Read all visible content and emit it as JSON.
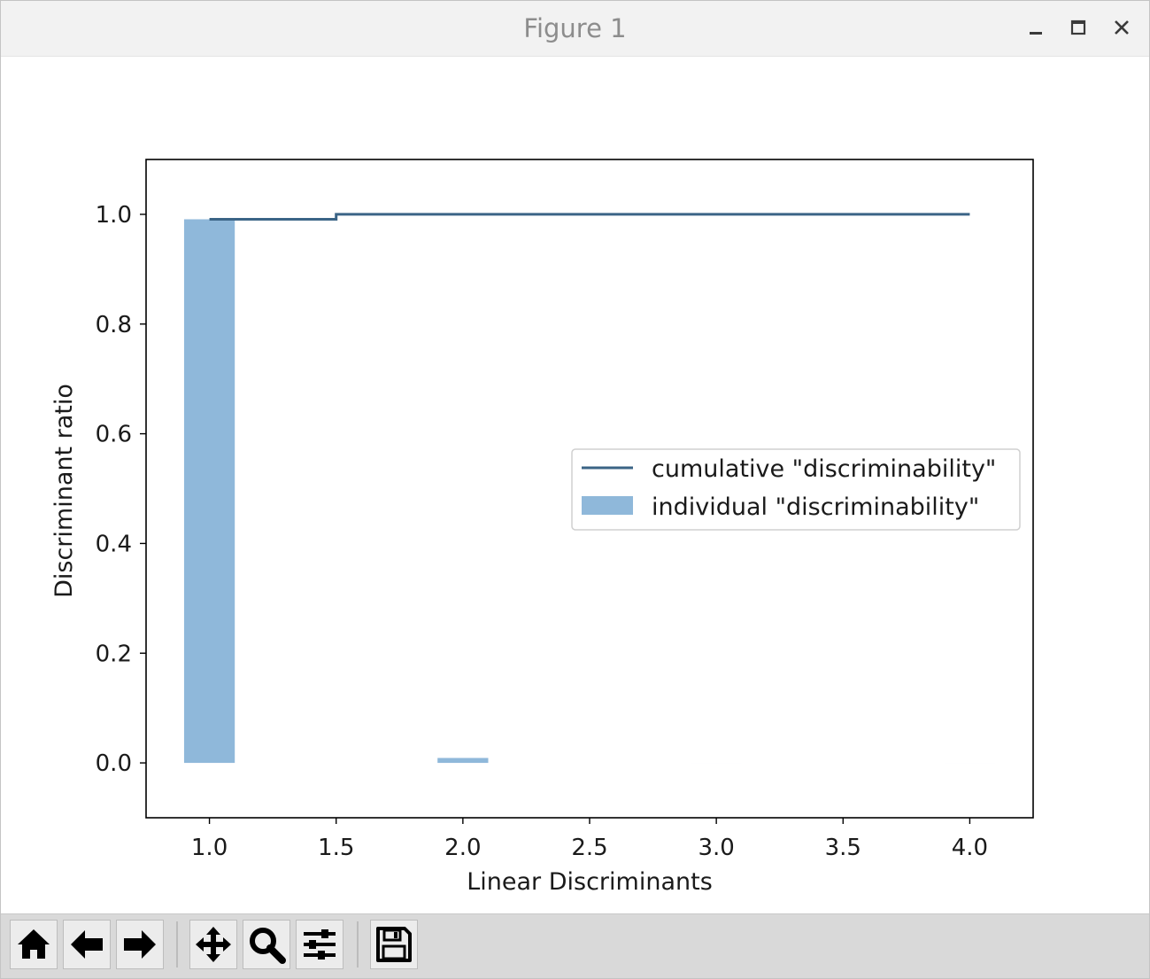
{
  "window": {
    "title": "Figure 1",
    "controls": [
      "minimize-icon",
      "maximize-icon",
      "close-icon"
    ]
  },
  "toolbar": {
    "buttons": [
      "home-icon",
      "back-icon",
      "forward-icon",
      "pan-icon",
      "zoom-icon",
      "configure-subplots-icon",
      "save-icon"
    ]
  },
  "chart_data": {
    "type": "bar",
    "title": "",
    "xlabel": "Linear Discriminants",
    "ylabel": "Discriminant ratio",
    "xlim": [
      0.75,
      4.25
    ],
    "ylim": [
      -0.1,
      1.1
    ],
    "xticks": [
      "1.0",
      "1.5",
      "2.0",
      "2.5",
      "3.0",
      "3.5",
      "4.0"
    ],
    "xtick_values": [
      1.0,
      1.5,
      2.0,
      2.5,
      3.0,
      3.5,
      4.0
    ],
    "yticks": [
      "0.0",
      "0.2",
      "0.4",
      "0.6",
      "0.8",
      "1.0"
    ],
    "ytick_values": [
      0.0,
      0.2,
      0.4,
      0.6,
      0.8,
      1.0
    ],
    "grid": false,
    "legend": {
      "position": "center-right",
      "entries": [
        "cumulative \"discriminability\"",
        "individual \"discriminability\""
      ]
    },
    "series": [
      {
        "name": "individual \"discriminability\"",
        "kind": "bar",
        "color": "#8fb8da",
        "bar_width": 0.2,
        "x": [
          1,
          2,
          3,
          4
        ],
        "values": [
          0.991,
          0.009,
          0.0,
          0.0
        ]
      },
      {
        "name": "cumulative \"discriminability\"",
        "kind": "step",
        "color": "#3b6486",
        "x": [
          1,
          2,
          3,
          4
        ],
        "values": [
          0.991,
          1.0,
          1.0,
          1.0
        ]
      }
    ]
  }
}
